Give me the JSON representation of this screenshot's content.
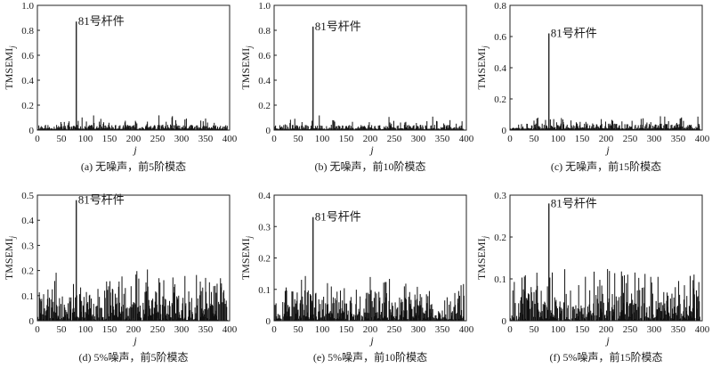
{
  "figure": {
    "panels": [
      {
        "caption": "(a) 无噪声，前5阶模态",
        "annotation": "81号杆件"
      },
      {
        "caption": "(b) 无噪声，前10阶模态",
        "annotation": "81号杆件"
      },
      {
        "caption": "(c) 无噪声，前15阶模态",
        "annotation": "81号杆件"
      },
      {
        "caption": "(d) 5%噪声，前5阶模态",
        "annotation": "81号杆件"
      },
      {
        "caption": "(e) 5%噪声，前10阶模态",
        "annotation": "81号杆件"
      },
      {
        "caption": "(f) 5%噪声，前15阶模态",
        "annotation": "81号杆件"
      }
    ]
  },
  "chart_data": [
    {
      "type": "bar",
      "title": "(a) 无噪声，前5阶模态",
      "xlabel": "j",
      "ylabel": "TMSEMI_j",
      "xlim": [
        0,
        400
      ],
      "ylim": [
        0,
        1.0
      ],
      "xticks": [
        "0",
        "50",
        "100",
        "150",
        "200",
        "250",
        "300",
        "350",
        "400"
      ],
      "yticks": [
        "0",
        "0.2",
        "0.4",
        "0.6",
        "0.8",
        "1.0"
      ],
      "annotation": {
        "text": "81号杆件",
        "x": 81,
        "y": 0.87
      },
      "peak": {
        "x": 81,
        "y": 0.87
      },
      "baseline_max": 0.12,
      "noise": false,
      "seed": 11
    },
    {
      "type": "bar",
      "title": "(b) 无噪声，前10阶模态",
      "xlabel": "j",
      "ylabel": "TMSEMI_j",
      "xlim": [
        0,
        400
      ],
      "ylim": [
        0,
        1.0
      ],
      "xticks": [
        "0",
        "50",
        "100",
        "150",
        "200",
        "250",
        "300",
        "350",
        "400"
      ],
      "yticks": [
        "0",
        "0.2",
        "0.4",
        "0.6",
        "0.8",
        "1.0"
      ],
      "annotation": {
        "text": "81号杆件",
        "x": 81,
        "y": 0.83
      },
      "peak": {
        "x": 81,
        "y": 0.83
      },
      "baseline_max": 0.12,
      "noise": false,
      "seed": 23
    },
    {
      "type": "bar",
      "title": "(c) 无噪声，前15阶模态",
      "xlabel": "j",
      "ylabel": "TMSEMI_j",
      "xlim": [
        0,
        400
      ],
      "ylim": [
        0,
        0.8
      ],
      "xticks": [
        "0",
        "50",
        "100",
        "150",
        "200",
        "250",
        "300",
        "350",
        "400"
      ],
      "yticks": [
        "0",
        "0.2",
        "0.4",
        "0.6",
        "0.8"
      ],
      "annotation": {
        "text": "81号杆件",
        "x": 81,
        "y": 0.62
      },
      "peak": {
        "x": 81,
        "y": 0.62
      },
      "baseline_max": 0.09,
      "noise": false,
      "seed": 37
    },
    {
      "type": "bar",
      "title": "(d) 5%噪声，前5阶模态",
      "xlabel": "j",
      "ylabel": "TMSEMI_j",
      "xlim": [
        0,
        400
      ],
      "ylim": [
        0,
        0.5
      ],
      "xticks": [
        "0",
        "50",
        "100",
        "150",
        "200",
        "250",
        "300",
        "350",
        "400"
      ],
      "yticks": [
        "0",
        "0.1",
        "0.2",
        "0.3",
        "0.4",
        "0.5"
      ],
      "annotation": {
        "text": "81号杆件",
        "x": 81,
        "y": 0.48
      },
      "peak": {
        "x": 81,
        "y": 0.48
      },
      "baseline_max": 0.21,
      "noise": true,
      "seed": 41
    },
    {
      "type": "bar",
      "title": "(e) 5%噪声，前10阶模态",
      "xlabel": "j",
      "ylabel": "TMSEMI_j",
      "xlim": [
        0,
        400
      ],
      "ylim": [
        0,
        0.4
      ],
      "xticks": [
        "0",
        "50",
        "100",
        "150",
        "200",
        "250",
        "300",
        "350",
        "400"
      ],
      "yticks": [
        "0",
        "0.1",
        "0.2",
        "0.3",
        "0.4"
      ],
      "annotation": {
        "text": "81号杆件",
        "x": 81,
        "y": 0.33
      },
      "peak": {
        "x": 81,
        "y": 0.33
      },
      "baseline_max": 0.15,
      "noise": true,
      "seed": 53
    },
    {
      "type": "bar",
      "title": "(f) 5%噪声，前15阶模态",
      "xlabel": "j",
      "ylabel": "TMSEMI_j",
      "xlim": [
        0,
        400
      ],
      "ylim": [
        0,
        0.3
      ],
      "xticks": [
        "0",
        "50",
        "100",
        "150",
        "200",
        "250",
        "300",
        "350",
        "400"
      ],
      "yticks": [
        "0",
        "0.1",
        "0.2",
        "0.3"
      ],
      "annotation": {
        "text": "81号杆件",
        "x": 81,
        "y": 0.28
      },
      "peak": {
        "x": 81,
        "y": 0.28
      },
      "baseline_max": 0.13,
      "noise": true,
      "seed": 67
    }
  ]
}
